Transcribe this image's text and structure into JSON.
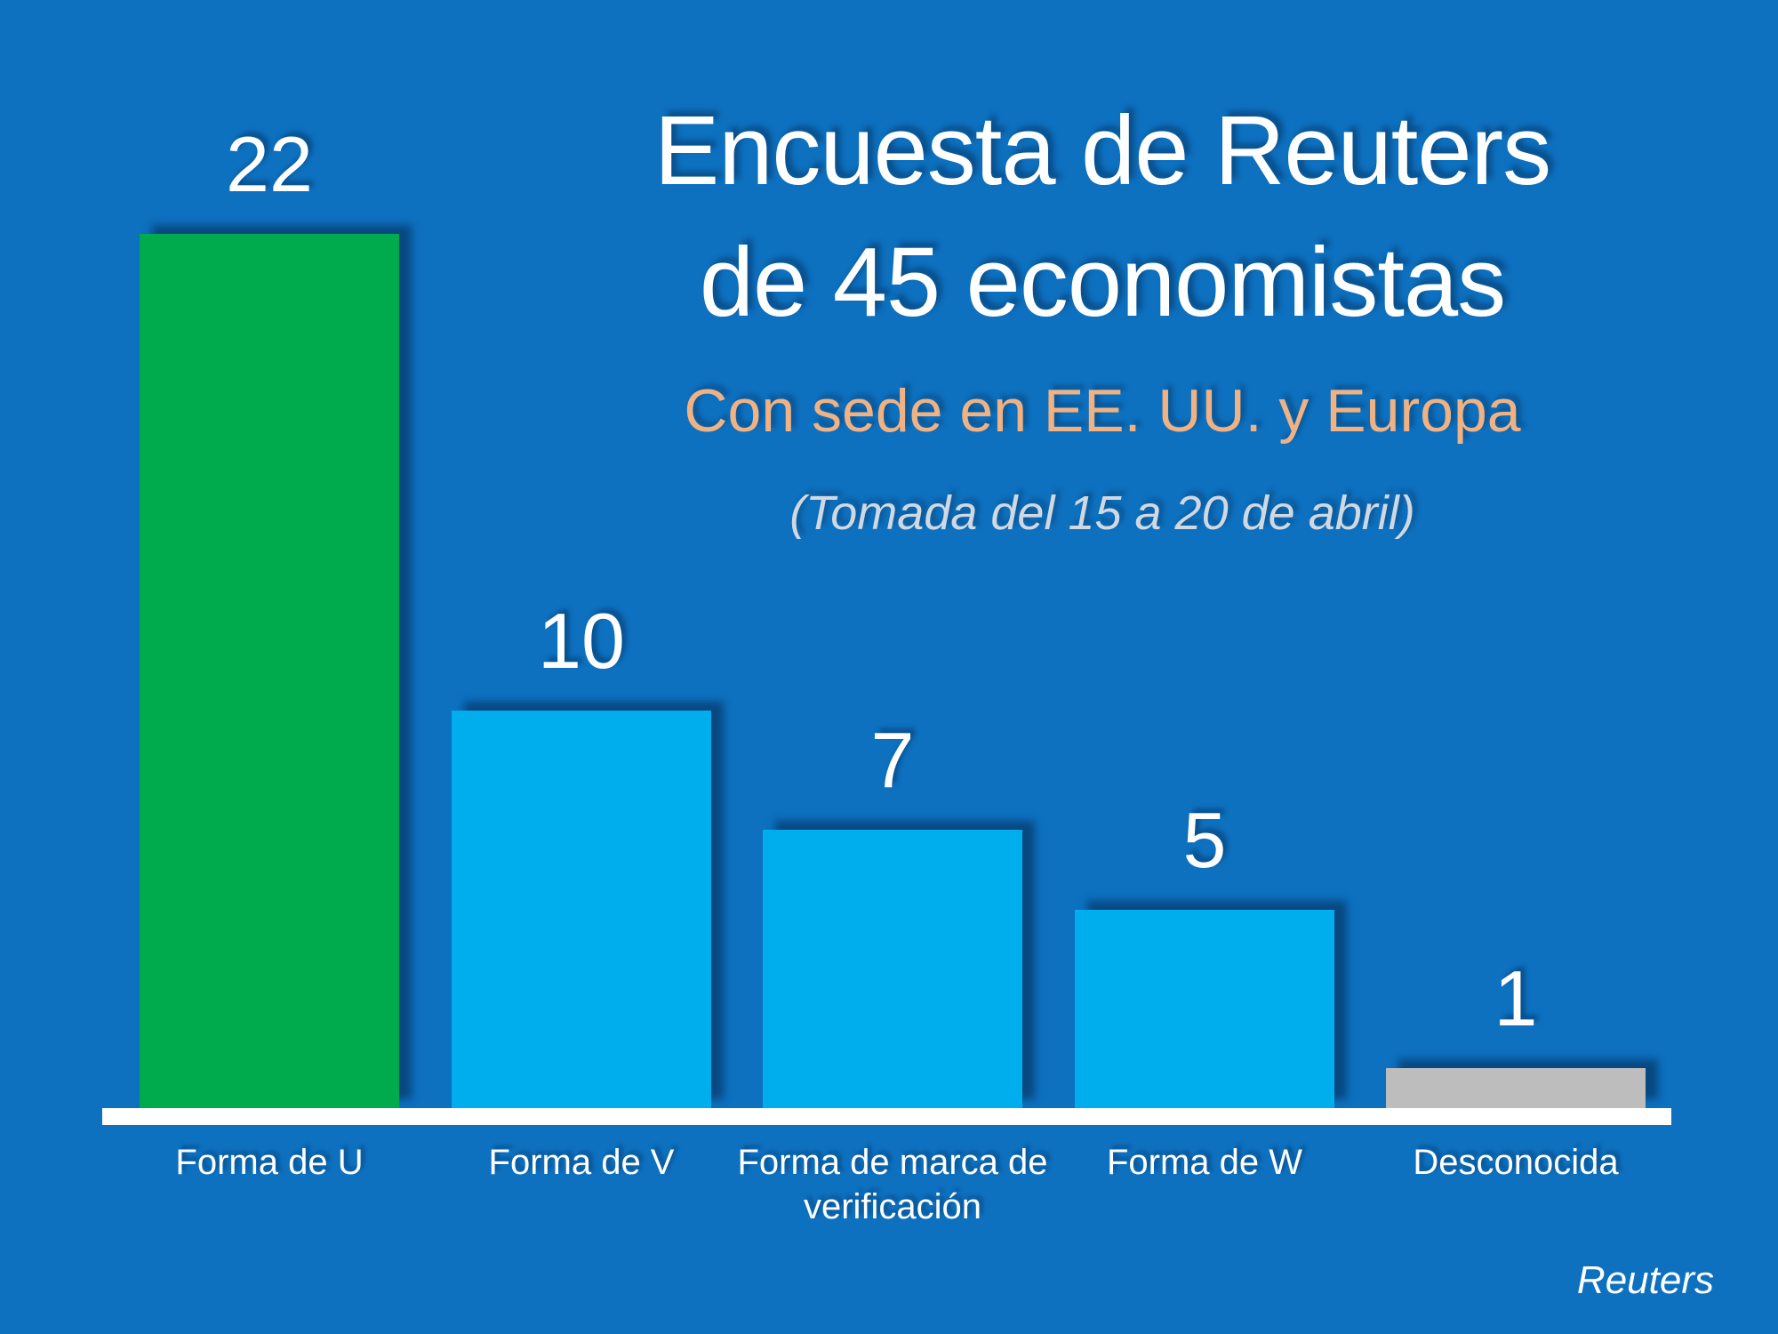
{
  "title": {
    "line1": "Encuesta de Reuters",
    "line2": "de 45 economistas"
  },
  "subtitle": "Con sede en EE. UU. y Europa",
  "note": "(Tomada del 15 a 20 de abril)",
  "credit": "Reuters",
  "colors": {
    "background": "#0d71c0",
    "bar_blue": "#00aeee",
    "bar_green": "#00ab4e",
    "bar_gray": "#bdbdbd",
    "subtitle_peach": "#f0b283",
    "note_gray": "#d0d8e2",
    "text_white": "#ffffff",
    "axis_white": "#ffffff"
  },
  "chart_data": {
    "type": "bar",
    "title": "Encuesta de Reuters de 45 economistas",
    "subtitle": "Con sede en EE. UU. y Europa (Tomada del 15 a 20 de abril)",
    "categories": [
      "Forma de U",
      "Forma de V",
      "Forma de marca de\nverificación",
      "Forma de W",
      "Desconocida"
    ],
    "values": [
      22,
      10,
      7,
      5,
      1
    ],
    "data_labels": [
      "22",
      "10",
      "7",
      "5",
      "1"
    ],
    "bar_colors": [
      "#00ab4e",
      "#00aeee",
      "#00aeee",
      "#00aeee",
      "#bdbdbd"
    ],
    "xlabel": "",
    "ylabel": "",
    "ylim": [
      0,
      22
    ],
    "grid": false,
    "legend": false,
    "value_labels_position": "above-bars"
  }
}
